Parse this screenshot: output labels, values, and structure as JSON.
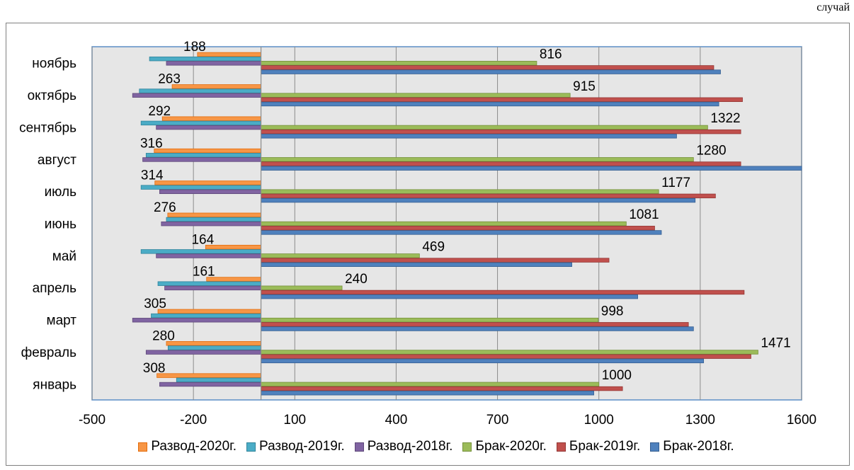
{
  "chart_data": {
    "type": "bar",
    "orientation": "horizontal",
    "unit_label": "случай",
    "categories": [
      "январь",
      "февраль",
      "март",
      "апрель",
      "май",
      "июнь",
      "июль",
      "август",
      "сентябрь",
      "октябрь",
      "ноябрь"
    ],
    "xlim": [
      -500,
      1600
    ],
    "xticks": [
      -500,
      -200,
      100,
      400,
      700,
      1000,
      1300,
      1600
    ],
    "grid": true,
    "legend_position": "bottom",
    "series": [
      {
        "name": "Развод-2020г.",
        "color": "#F79646",
        "stroke": "#E46C0A",
        "values": [
          -308,
          -280,
          -305,
          -161,
          -164,
          -276,
          -314,
          -316,
          -292,
          -263,
          -188
        ]
      },
      {
        "name": "Развод-2019г.",
        "color": "#4BACC6",
        "stroke": "#31859C",
        "values": [
          -250,
          -275,
          -325,
          -305,
          -355,
          -280,
          -355,
          -340,
          -355,
          -360,
          -330
        ]
      },
      {
        "name": "Развод-2018г.",
        "color": "#8064A2",
        "stroke": "#5F497A",
        "values": [
          -300,
          -340,
          -380,
          -285,
          -310,
          -295,
          -300,
          -350,
          -310,
          -380,
          -280
        ]
      },
      {
        "name": "Брак-2020г.",
        "color": "#9BBB59",
        "stroke": "#76923C",
        "values": [
          1000,
          1471,
          998,
          240,
          469,
          1081,
          1177,
          1280,
          1322,
          915,
          816
        ]
      },
      {
        "name": "Брак-2019г.",
        "color": "#C0504D",
        "stroke": "#943634",
        "values": [
          1070,
          1450,
          1265,
          1430,
          1030,
          1165,
          1345,
          1420,
          1420,
          1425,
          1340
        ]
      },
      {
        "name": "Брак-2018г.",
        "color": "#4F81BD",
        "stroke": "#365F91",
        "values": [
          985,
          1310,
          1280,
          1115,
          920,
          1185,
          1285,
          1600,
          1230,
          1355,
          1360
        ]
      }
    ],
    "data_labels": {
      "series": "Брак-2020г.",
      "values": [
        1000,
        1471,
        998,
        240,
        469,
        1081,
        1177,
        1280,
        1322,
        915,
        816
      ],
      "divorce_series": "Развод-2020г.",
      "divorce_values": [
        308,
        280,
        305,
        161,
        164,
        276,
        314,
        316,
        292,
        263,
        188
      ]
    }
  }
}
